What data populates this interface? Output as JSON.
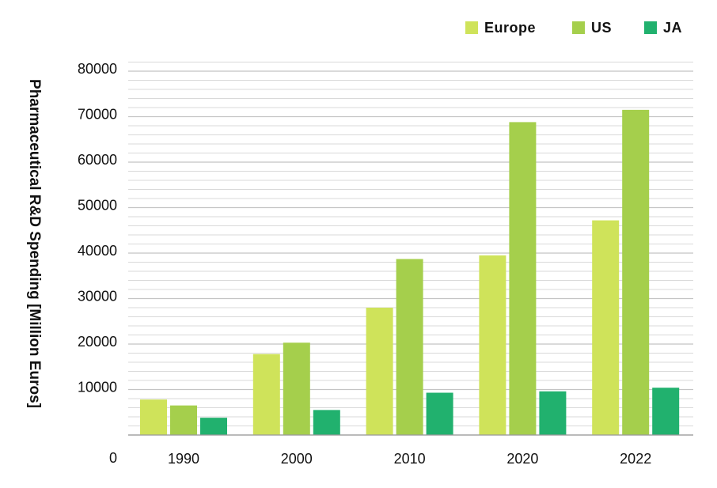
{
  "chart_data": {
    "type": "bar",
    "title": "",
    "xlabel": "",
    "ylabel": "Pharmaceutical R&D Spending [Million Euros]",
    "categories": [
      "1990",
      "2000",
      "2010",
      "2020",
      "2022"
    ],
    "series": [
      {
        "name": "Europe",
        "color": "#cfe35a",
        "values": [
          7800,
          17800,
          28000,
          39500,
          47200
        ]
      },
      {
        "name": "US",
        "color": "#a5cf4c",
        "values": [
          6500,
          20300,
          38700,
          68800,
          71500
        ]
      },
      {
        "name": "JA",
        "color": "#21b16e",
        "values": [
          3800,
          5500,
          9300,
          9600,
          10400
        ]
      }
    ],
    "ylim": [
      0,
      80000
    ],
    "y_ticks": [
      0,
      10000,
      20000,
      30000,
      40000,
      50000,
      60000,
      70000,
      80000
    ],
    "grid": true,
    "grid_color": "#cccccc",
    "legend_position": "top-right"
  }
}
